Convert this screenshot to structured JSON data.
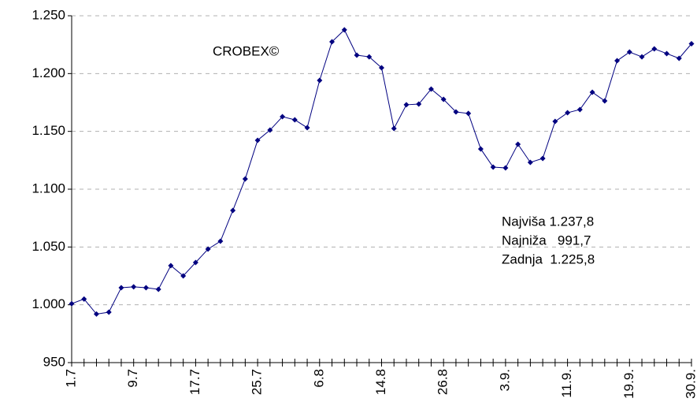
{
  "chart_data": {
    "type": "line",
    "title": "CROBEX©",
    "annotations": [
      "Najviša 1.237,8",
      "Najniža   991,7",
      "Zadnja  1.225,8"
    ],
    "categories": [
      "1.7",
      null,
      null,
      null,
      null,
      "9.7",
      null,
      null,
      null,
      null,
      "17.7",
      null,
      null,
      null,
      null,
      "25.7",
      null,
      null,
      null,
      null,
      "6.8",
      null,
      null,
      null,
      null,
      "14.8",
      null,
      null,
      null,
      null,
      "26.8",
      null,
      null,
      null,
      null,
      "3.9.",
      null,
      null,
      null,
      null,
      "11.9.",
      null,
      null,
      null,
      null,
      "19.9.",
      null,
      null,
      null,
      null,
      "30.9."
    ],
    "series": [
      {
        "name": "CROBEX",
        "color": "#000080",
        "values": [
          1001,
          1005,
          992,
          993.6,
          1014.8,
          1015.5,
          1014.8,
          1013.4,
          1033.9,
          1025,
          1036.6,
          1048.2,
          1055,
          1081.6,
          1108.9,
          1142.3,
          1151.1,
          1162.7,
          1160,
          1153.2,
          1194.1,
          1227.5,
          1237.8,
          1215.9,
          1214.5,
          1205,
          1152.5,
          1173,
          1173.6,
          1186.6,
          1177.7,
          1166.8,
          1165.5,
          1134.8,
          1119.1,
          1118.4,
          1138.9,
          1123.2,
          1126.6,
          1158.6,
          1166.1,
          1168.9,
          1183.9,
          1176.4,
          1211.1,
          1218.6,
          1214.5,
          1221.4,
          1217.3,
          1213.2,
          1225.8
        ]
      }
    ],
    "ylim": [
      950,
      1250
    ],
    "yticks": [
      950,
      {
        "value": 1000,
        "label": "1.000"
      },
      {
        "value": 1050,
        "label": "1.050"
      },
      {
        "value": 1100,
        "label": "1.100"
      },
      {
        "value": 1150,
        "label": "1.150"
      },
      {
        "value": 1200,
        "label": "1.200"
      },
      {
        "value": 1250,
        "label": "1.250"
      }
    ],
    "grid": true
  }
}
